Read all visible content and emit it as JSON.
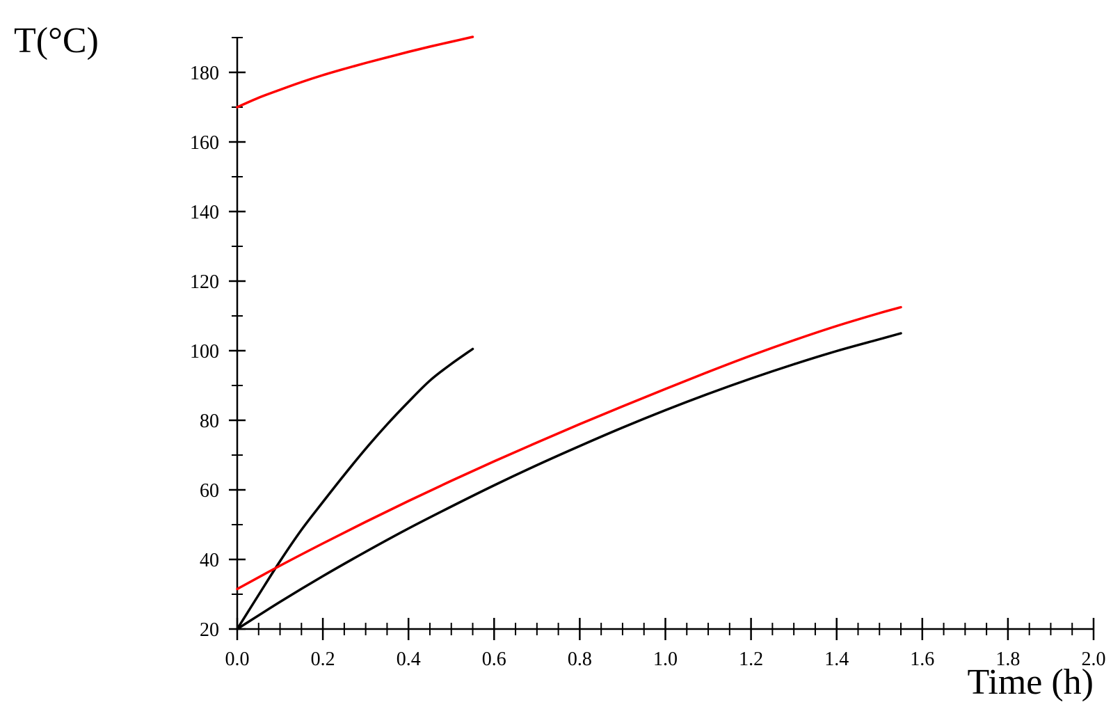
{
  "chart_data": {
    "type": "line",
    "title": "",
    "xlabel": "Time (h)",
    "ylabel": "T(°C)",
    "xlim": [
      0.0,
      2.0
    ],
    "ylim": [
      20,
      190
    ],
    "x_ticks": [
      "0.0",
      "0.2",
      "0.4",
      "0.6",
      "0.8",
      "1.0",
      "1.2",
      "1.4",
      "1.6",
      "1.8",
      "2.0"
    ],
    "y_ticks": [
      "20",
      "40",
      "60",
      "80",
      "100",
      "120",
      "140",
      "160",
      "180"
    ],
    "grid": false,
    "legend": "none",
    "series": [
      {
        "color": "#ff0000",
        "points": [
          [
            0.0,
            170.0
          ],
          [
            0.05,
            172.7
          ],
          [
            0.1,
            175.0
          ],
          [
            0.15,
            177.2
          ],
          [
            0.2,
            179.2
          ],
          [
            0.25,
            181.0
          ],
          [
            0.3,
            182.7
          ],
          [
            0.35,
            184.3
          ],
          [
            0.4,
            185.9
          ],
          [
            0.45,
            187.4
          ],
          [
            0.5,
            188.8
          ],
          [
            0.55,
            190.2
          ]
        ]
      },
      {
        "color": "#000000",
        "points": [
          [
            0.0,
            20.0
          ],
          [
            0.05,
            29.8
          ],
          [
            0.1,
            39.5
          ],
          [
            0.15,
            48.5
          ],
          [
            0.2,
            56.5
          ],
          [
            0.25,
            64.3
          ],
          [
            0.3,
            71.8
          ],
          [
            0.35,
            78.8
          ],
          [
            0.4,
            85.3
          ],
          [
            0.45,
            91.4
          ],
          [
            0.5,
            96.2
          ],
          [
            0.55,
            100.5
          ]
        ]
      },
      {
        "color": "#ff0000",
        "points": [
          [
            0.0,
            31.5
          ],
          [
            0.1,
            38.2
          ],
          [
            0.2,
            44.6
          ],
          [
            0.3,
            50.8
          ],
          [
            0.4,
            56.8
          ],
          [
            0.5,
            62.6
          ],
          [
            0.6,
            68.2
          ],
          [
            0.7,
            73.6
          ],
          [
            0.8,
            78.9
          ],
          [
            0.9,
            84.0
          ],
          [
            1.0,
            89.0
          ],
          [
            1.1,
            93.9
          ],
          [
            1.2,
            98.6
          ],
          [
            1.3,
            103.0
          ],
          [
            1.4,
            107.1
          ],
          [
            1.5,
            110.8
          ],
          [
            1.55,
            112.5
          ]
        ]
      },
      {
        "color": "#000000",
        "points": [
          [
            0.0,
            20.0
          ],
          [
            0.1,
            27.8
          ],
          [
            0.2,
            35.2
          ],
          [
            0.3,
            42.2
          ],
          [
            0.4,
            48.9
          ],
          [
            0.5,
            55.2
          ],
          [
            0.6,
            61.3
          ],
          [
            0.7,
            67.1
          ],
          [
            0.8,
            72.6
          ],
          [
            0.9,
            77.9
          ],
          [
            1.0,
            82.9
          ],
          [
            1.1,
            87.6
          ],
          [
            1.2,
            92.0
          ],
          [
            1.3,
            96.1
          ],
          [
            1.4,
            99.9
          ],
          [
            1.5,
            103.3
          ],
          [
            1.55,
            105.0
          ]
        ]
      }
    ]
  }
}
